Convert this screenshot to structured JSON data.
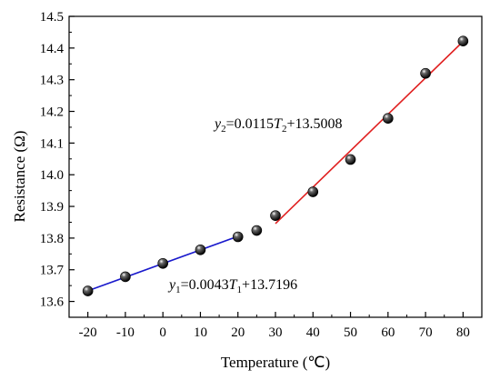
{
  "chart_data": {
    "type": "scatter",
    "xlabel": "Temperature (℃)",
    "ylabel": "Resistance (Ω)",
    "xlim": [
      -25,
      85
    ],
    "ylim": [
      13.55,
      14.5
    ],
    "xticks": [
      -20,
      -10,
      0,
      10,
      20,
      30,
      40,
      50,
      60,
      70,
      80
    ],
    "yticks": [
      13.6,
      13.7,
      13.8,
      13.9,
      14.0,
      14.1,
      14.2,
      14.3,
      14.4,
      14.5
    ],
    "ytick_labels": [
      "13.6",
      "13.7",
      "13.8",
      "13.9",
      "14.0",
      "14.1",
      "14.2",
      "14.3",
      "14.4",
      "14.5"
    ],
    "grid": false,
    "series": [
      {
        "x": [
          -20,
          -10,
          0,
          10,
          20,
          25,
          30,
          40,
          50,
          60,
          70,
          80
        ],
        "y": [
          13.633,
          13.678,
          13.72,
          13.763,
          13.804,
          13.824,
          13.871,
          13.946,
          14.048,
          14.178,
          14.32,
          14.422
        ]
      }
    ],
    "fits": [
      {
        "x_range": [
          -20,
          20
        ],
        "slope": 0.0043,
        "intercept": 13.7196,
        "color": "#1a1acc",
        "label_y": "y",
        "label_y_sub": "1",
        "label_mid": "=0.0043",
        "label_t": "T",
        "label_t_sub": "1",
        "label_end": "+13.7196"
      },
      {
        "x_range": [
          30,
          80
        ],
        "slope": 0.0115,
        "intercept": 13.5008,
        "color": "#e02020",
        "label_y": "y",
        "label_y_sub": "2",
        "label_mid": "=0.0115",
        "label_t": "T",
        "label_t_sub": "2",
        "label_end": "+13.5008"
      }
    ]
  }
}
